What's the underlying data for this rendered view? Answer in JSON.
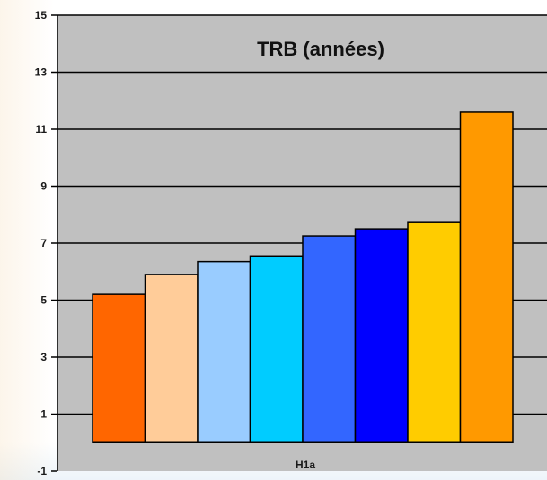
{
  "chart_data": {
    "type": "bar",
    "title": "TRB (années)",
    "categories": [
      "H1a"
    ],
    "series": [
      {
        "values": [
          5.2
        ],
        "color": "#ff6600"
      },
      {
        "values": [
          5.9
        ],
        "color": "#ffcc99"
      },
      {
        "values": [
          6.35
        ],
        "color": "#99ccff"
      },
      {
        "values": [
          6.55
        ],
        "color": "#00ccff"
      },
      {
        "values": [
          7.25
        ],
        "color": "#3366ff"
      },
      {
        "values": [
          7.5
        ],
        "color": "#0000ff"
      },
      {
        "values": [
          7.75
        ],
        "color": "#ffcc00"
      },
      {
        "values": [
          11.6
        ],
        "color": "#ff9900"
      }
    ],
    "xlabel": "",
    "ylabel": "",
    "ylim": [
      -1,
      15
    ],
    "yticks": [
      -1,
      1,
      3,
      5,
      7,
      9,
      11,
      13,
      15
    ],
    "grid": true,
    "plot_background": "#c0c0c0",
    "legend": "none"
  }
}
